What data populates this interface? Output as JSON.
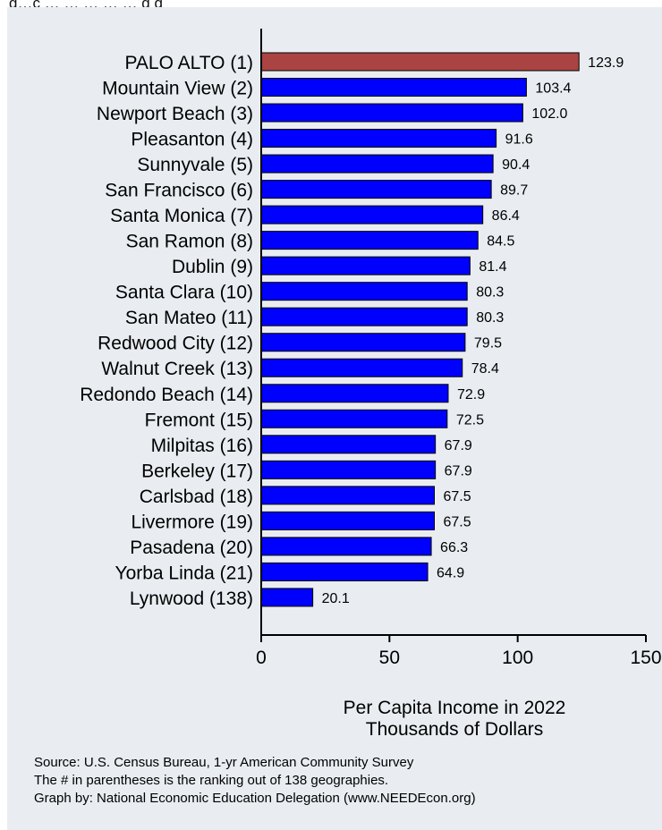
{
  "header": {
    "clipped_text": "g…c  …  …  …  …  …  g  g"
  },
  "chart_data": {
    "type": "bar",
    "orientation": "horizontal",
    "categories": [
      "PALO ALTO (1)",
      "Mountain View (2)",
      "Newport Beach (3)",
      "Pleasanton (4)",
      "Sunnyvale (5)",
      "San Francisco (6)",
      "Santa Monica (7)",
      "San Ramon (8)",
      "Dublin (9)",
      "Santa Clara (10)",
      "San Mateo (11)",
      "Redwood City (12)",
      "Walnut Creek (13)",
      "Redondo Beach (14)",
      "Fremont (15)",
      "Milpitas (16)",
      "Berkeley (17)",
      "Carlsbad (18)",
      "Livermore (19)",
      "Pasadena (20)",
      "Yorba Linda (21)",
      "Lynwood (138)"
    ],
    "values": [
      123.9,
      103.4,
      102.0,
      91.6,
      90.4,
      89.7,
      86.4,
      84.5,
      81.4,
      80.3,
      80.3,
      79.5,
      78.4,
      72.9,
      72.5,
      67.9,
      67.9,
      67.5,
      67.5,
      66.3,
      64.9,
      20.1
    ],
    "value_labels": [
      "123.9",
      "103.4",
      "102.0",
      "91.6",
      "90.4",
      "89.7",
      "86.4",
      "84.5",
      "81.4",
      "80.3",
      "80.3",
      "79.5",
      "78.4",
      "72.9",
      "72.5",
      "67.9",
      "67.9",
      "67.5",
      "67.5",
      "66.3",
      "64.9",
      "20.1"
    ],
    "highlight_index": 0,
    "xlim": [
      0,
      150
    ],
    "xticks": [
      0,
      50,
      100,
      150
    ],
    "xtick_labels": [
      "0",
      "50",
      "100",
      "150"
    ],
    "xlabel_lines": [
      "Per Capita Income in 2022",
      "Thousands of Dollars"
    ],
    "grid": false,
    "legend": "none",
    "colors": {
      "bar": "#0000ff",
      "highlight": "#a94442",
      "background": "#e9edf1",
      "axis": "#000000",
      "text": "#000000"
    }
  },
  "footer": {
    "lines": [
      "Source: U.S. Census Bureau, 1-yr American Community Survey",
      "The # in parentheses is the ranking out of 138 geographies.",
      "Graph by: National Economic Education Delegation (www.NEEDEcon.org)"
    ]
  }
}
